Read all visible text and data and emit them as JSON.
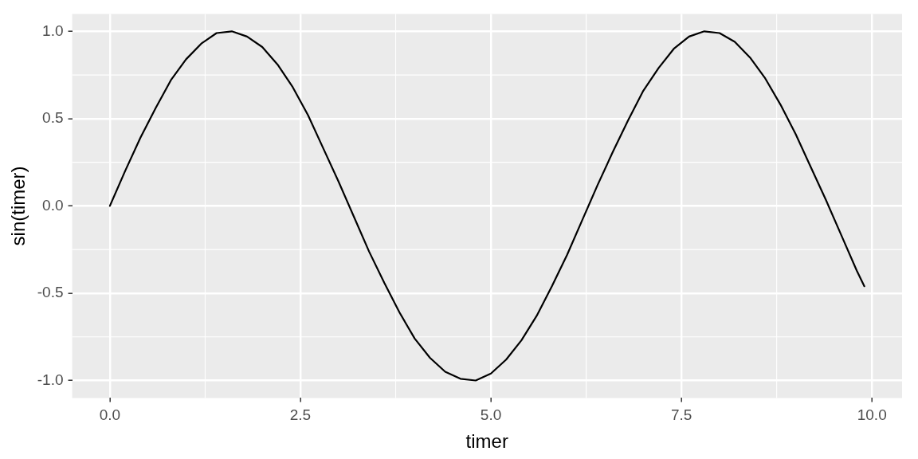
{
  "chart_data": {
    "type": "line",
    "xlabel": "timer",
    "ylabel": "sin(timer)",
    "x": [
      0,
      0.2,
      0.4,
      0.6,
      0.8,
      1.0,
      1.2,
      1.4,
      1.6,
      1.8,
      2.0,
      2.2,
      2.4,
      2.6,
      2.8,
      3.0,
      3.2,
      3.4,
      3.6,
      3.8,
      4.0,
      4.2,
      4.4,
      4.6,
      4.8,
      5.0,
      5.2,
      5.4,
      5.6,
      5.8,
      6.0,
      6.2,
      6.4,
      6.6,
      6.8,
      7.0,
      7.2,
      7.4,
      7.6,
      7.8,
      8.0,
      8.2,
      8.4,
      8.6,
      8.8,
      9.0,
      9.2,
      9.4,
      9.6,
      9.8,
      9.9
    ],
    "series": [
      {
        "color": "#000000",
        "values": [
          0,
          0.2,
          0.39,
          0.56,
          0.72,
          0.84,
          0.93,
          0.99,
          1.0,
          0.97,
          0.91,
          0.81,
          0.68,
          0.52,
          0.33,
          0.14,
          -0.06,
          -0.26,
          -0.44,
          -0.61,
          -0.76,
          -0.87,
          -0.95,
          -0.99,
          -1.0,
          -0.96,
          -0.88,
          -0.77,
          -0.63,
          -0.46,
          -0.28,
          -0.08,
          0.12,
          0.31,
          0.49,
          0.66,
          0.79,
          0.9,
          0.97,
          1.0,
          0.99,
          0.94,
          0.85,
          0.73,
          0.58,
          0.41,
          0.22,
          0.03,
          -0.17,
          -0.37,
          -0.46
        ]
      }
    ],
    "xlim": [
      -0.495,
      10.395
    ],
    "ylim": [
      -1.1,
      1.1
    ],
    "xticks": [
      {
        "value": 0,
        "label": "0.0"
      },
      {
        "value": 2.5,
        "label": "2.5"
      },
      {
        "value": 5,
        "label": "5.0"
      },
      {
        "value": 7.5,
        "label": "7.5"
      },
      {
        "value": 10,
        "label": "10.0"
      }
    ],
    "yticks": [
      {
        "value": -1,
        "label": "-1.0"
      },
      {
        "value": -0.5,
        "label": "-0.5"
      },
      {
        "value": 0,
        "label": "0.0"
      },
      {
        "value": 0.5,
        "label": "0.5"
      },
      {
        "value": 1,
        "label": "1.0"
      }
    ],
    "grid": true,
    "legend": false,
    "marker": "none",
    "line_style": "solid"
  }
}
